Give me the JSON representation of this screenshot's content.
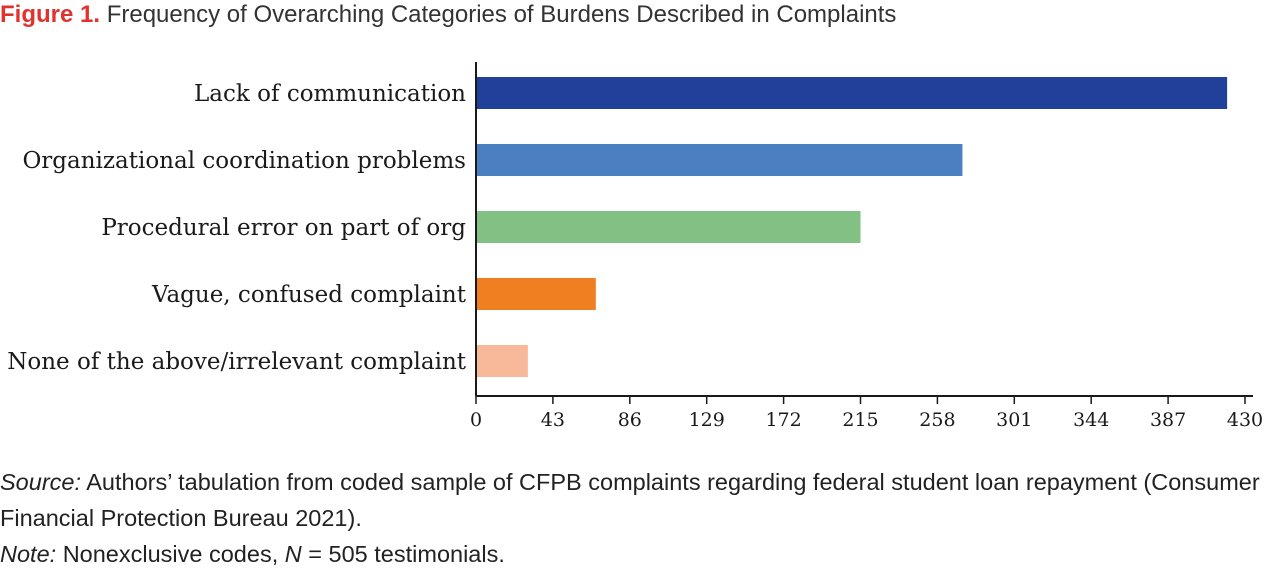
{
  "figure": {
    "label": "Figure 1.",
    "title": "Frequency of Overarching Categories of Burdens Described in Complaints"
  },
  "chart_data": {
    "type": "bar",
    "orientation": "horizontal",
    "categories": [
      "Lack of communication",
      "Organizational coordination problems",
      "Procedural error on part of org",
      "Vague, confused complaint",
      "None of the above/irrelevant complaint"
    ],
    "values": [
      420,
      272,
      215,
      67,
      29
    ],
    "colors": [
      "#21409a",
      "#4a7fc1",
      "#82c084",
      "#f07f22",
      "#f7b99a"
    ],
    "xlim": [
      0,
      430
    ],
    "xticks": [
      0,
      43,
      86,
      129,
      172,
      215,
      258,
      301,
      344,
      387,
      430
    ],
    "title": "Frequency of Overarching Categories of Burdens Described in Complaints",
    "xlabel": "",
    "ylabel": "",
    "grid": false,
    "legend": "none"
  },
  "caption": {
    "source_label": "Source:",
    "source_text": " Authors’ tabulation from coded sample of CFPB complaints regarding federal student loan repayment (Consumer Financial Protection Bureau 2021).",
    "note_label": "Note:",
    "note_text_before": " Nonexclusive codes, ",
    "note_n": "N",
    "note_text_after": " = 505 testimonials."
  }
}
